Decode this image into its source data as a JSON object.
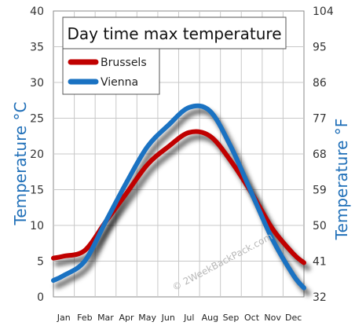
{
  "chart_data": {
    "type": "line",
    "title": "Day time max temperature",
    "categories": [
      "Jan",
      "Feb",
      "Mar",
      "Apr",
      "May",
      "Jun",
      "Jul",
      "Aug",
      "Sep",
      "Oct",
      "Nov",
      "Dec"
    ],
    "series": [
      {
        "name": "Brussels",
        "color": "#c00000",
        "values": [
          5.7,
          6.5,
          10.5,
          14.5,
          18.5,
          21,
          23,
          22.5,
          19,
          14.5,
          9.5,
          6
        ]
      },
      {
        "name": "Vienna",
        "color": "#1a72c2",
        "values": [
          3,
          5,
          10.5,
          16,
          21,
          24,
          26.5,
          26,
          21,
          14.5,
          8,
          3
        ]
      }
    ],
    "ylabel": "Temperature °C",
    "ylabel_right": "Temperature °F",
    "ylim": [
      0,
      40
    ],
    "yticks_left": [
      "0",
      "5",
      "10",
      "15",
      "20",
      "25",
      "30",
      "35",
      "40"
    ],
    "ylim_right": [
      32,
      104
    ],
    "yticks_right": [
      "32",
      "41",
      "50",
      "59",
      "68",
      "77",
      "86",
      "95",
      "104"
    ],
    "grid": true,
    "legend_position": "top-left",
    "watermark": "© 2WeekBackPack.com"
  }
}
